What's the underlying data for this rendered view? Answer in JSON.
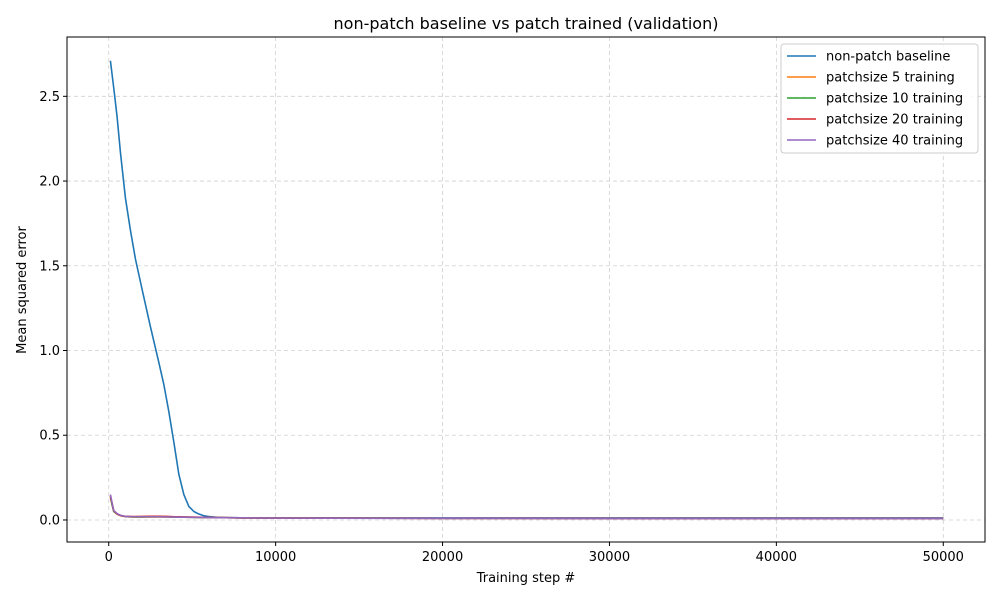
{
  "chart_data": {
    "type": "line",
    "title": "non-patch baseline vs patch trained (validation)",
    "xlabel": "Training step #",
    "ylabel": "Mean squared error",
    "xlim": [
      -2500,
      52500
    ],
    "ylim": [
      -0.13,
      2.85
    ],
    "xticks": [
      0,
      10000,
      20000,
      30000,
      40000,
      50000
    ],
    "xtick_labels": [
      "0",
      "10000",
      "20000",
      "30000",
      "40000",
      "50000"
    ],
    "yticks": [
      0.0,
      0.5,
      1.0,
      1.5,
      2.0,
      2.5
    ],
    "ytick_labels": [
      "0.0",
      "0.5",
      "1.0",
      "1.5",
      "2.0",
      "2.5"
    ],
    "grid": true,
    "legend_position": "top-right",
    "series": [
      {
        "name": "non-patch baseline",
        "color": "#1f77b4",
        "x": [
          100,
          300,
          500,
          700,
          1000,
          1300,
          1600,
          2000,
          2500,
          3000,
          3300,
          3600,
          3900,
          4200,
          4500,
          4800,
          5100,
          5400,
          5700,
          6000,
          6500,
          7000,
          8000,
          10000,
          15000,
          20000,
          30000,
          40000,
          50000
        ],
        "y": [
          2.71,
          2.55,
          2.38,
          2.17,
          1.9,
          1.71,
          1.54,
          1.36,
          1.14,
          0.93,
          0.8,
          0.64,
          0.46,
          0.27,
          0.15,
          0.08,
          0.05,
          0.035,
          0.025,
          0.02,
          0.016,
          0.014,
          0.013,
          0.012,
          0.012,
          0.012,
          0.012,
          0.012,
          0.012
        ]
      },
      {
        "name": "patchsize 5 training",
        "color": "#ff7f0e",
        "x": [
          100,
          200,
          300,
          500,
          700,
          1000,
          1500,
          2000,
          3000,
          4000,
          6000,
          10000,
          20000,
          30000,
          40000,
          50000
        ],
        "y": [
          0.13,
          0.09,
          0.05,
          0.035,
          0.026,
          0.02,
          0.017,
          0.017,
          0.018,
          0.017,
          0.014,
          0.011,
          0.01,
          0.009,
          0.009,
          0.009
        ]
      },
      {
        "name": "patchsize 10 training",
        "color": "#2ca02c",
        "x": [
          100,
          200,
          300,
          500,
          700,
          1000,
          1500,
          2000,
          3000,
          4000,
          6000,
          10000,
          20000,
          30000,
          40000,
          50000
        ],
        "y": [
          0.14,
          0.09,
          0.05,
          0.035,
          0.026,
          0.02,
          0.018,
          0.018,
          0.019,
          0.017,
          0.014,
          0.011,
          0.01,
          0.009,
          0.009,
          0.009
        ]
      },
      {
        "name": "patchsize 20 training",
        "color": "#d62728",
        "x": [
          100,
          200,
          300,
          500,
          700,
          1000,
          1500,
          2000,
          2500,
          3000,
          3500,
          4000,
          5000,
          6000,
          8000,
          10000,
          20000,
          30000,
          40000,
          50000
        ],
        "y": [
          0.14,
          0.1,
          0.055,
          0.035,
          0.026,
          0.021,
          0.02,
          0.021,
          0.022,
          0.022,
          0.021,
          0.019,
          0.017,
          0.015,
          0.012,
          0.011,
          0.01,
          0.009,
          0.009,
          0.009
        ]
      },
      {
        "name": "patchsize 40 training",
        "color": "#9467bd",
        "x": [
          100,
          200,
          300,
          500,
          700,
          1000,
          1500,
          2000,
          3000,
          4000,
          6000,
          10000,
          20000,
          30000,
          40000,
          50000
        ],
        "y": [
          0.15,
          0.1,
          0.055,
          0.038,
          0.028,
          0.021,
          0.019,
          0.019,
          0.019,
          0.017,
          0.014,
          0.011,
          0.009,
          0.008,
          0.008,
          0.008
        ]
      }
    ]
  }
}
